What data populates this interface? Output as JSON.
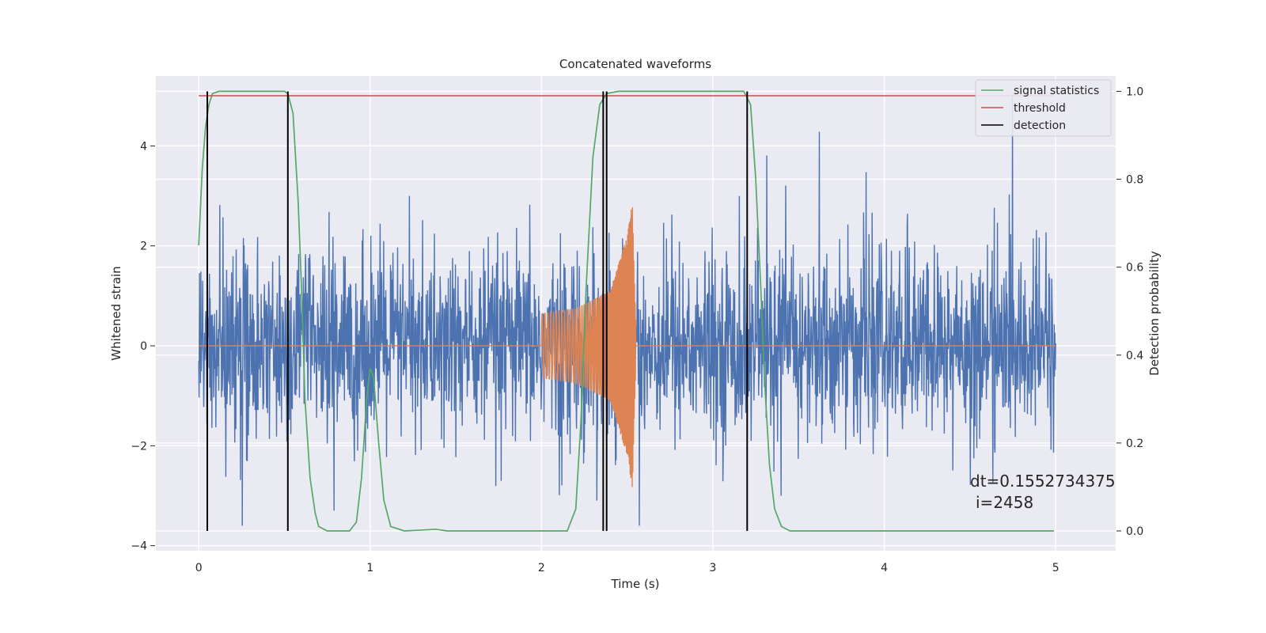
{
  "chart_data": {
    "type": "line",
    "title": "Concatenated waveforms",
    "xlabel": "Time (s)",
    "ylabel": "Whitened strain",
    "y2label": "Detection probability",
    "xlim": [
      -0.25,
      5.35
    ],
    "ylim": [
      -4.1,
      5.4
    ],
    "y2lim": [
      -0.045,
      1.035
    ],
    "xticks": [
      0,
      1,
      2,
      3,
      4,
      5
    ],
    "yticks": [
      -4,
      -2,
      0,
      2,
      4
    ],
    "y2ticks": [
      0.0,
      0.2,
      0.4,
      0.6,
      0.8,
      1.0
    ],
    "xtick_labels": [
      "0",
      "1",
      "2",
      "3",
      "4",
      "5"
    ],
    "ytick_labels": [
      "−4",
      "−2",
      "0",
      "2",
      "4"
    ],
    "y2tick_labels": [
      "0.0",
      "0.2",
      "0.4",
      "0.6",
      "0.8",
      "1.0"
    ],
    "grid": true,
    "legend_position": "top-right",
    "series": [
      {
        "name": "",
        "axis": "left",
        "color": "#4c72b0",
        "description": "noise",
        "x_range": [
          0,
          5
        ],
        "amplitude_range": [
          -3.6,
          5.0
        ]
      },
      {
        "name": "",
        "axis": "left",
        "color": "#dd8452",
        "description": "chirp",
        "x_range": [
          2.0,
          2.55
        ],
        "envelope": {
          "x": [
            2.0,
            2.2,
            2.4,
            2.5,
            2.53,
            2.55
          ],
          "amp": [
            0.65,
            0.75,
            1.1,
            2.2,
            2.9,
            0.5
          ]
        }
      },
      {
        "name": "signal statistics",
        "axis": "right",
        "color": "#55a868",
        "x": [
          0.0,
          0.02,
          0.04,
          0.06,
          0.08,
          0.12,
          0.5,
          0.52,
          0.55,
          0.58,
          0.6,
          0.62,
          0.65,
          0.68,
          0.7,
          0.75,
          0.88,
          0.92,
          0.95,
          0.98,
          1.0,
          1.02,
          1.05,
          1.08,
          1.12,
          1.2,
          1.35,
          1.38,
          1.45,
          2.15,
          2.2,
          2.23,
          2.26,
          2.3,
          2.34,
          2.38,
          2.45,
          3.18,
          3.22,
          3.25,
          3.28,
          3.3,
          3.33,
          3.36,
          3.4,
          3.45,
          4.99
        ],
        "y": [
          0.65,
          0.82,
          0.92,
          0.97,
          0.995,
          1.0,
          1.0,
          0.995,
          0.95,
          0.75,
          0.55,
          0.3,
          0.12,
          0.04,
          0.01,
          0.0,
          0.0,
          0.02,
          0.12,
          0.3,
          0.37,
          0.35,
          0.2,
          0.07,
          0.01,
          0.0,
          0.003,
          0.004,
          0.0,
          0.0,
          0.05,
          0.25,
          0.55,
          0.85,
          0.97,
          0.995,
          1.0,
          1.0,
          0.97,
          0.8,
          0.55,
          0.35,
          0.15,
          0.05,
          0.01,
          0.0,
          0.0
        ]
      },
      {
        "name": "threshold",
        "axis": "right",
        "color": "#c44e52",
        "x": [
          0,
          4.99
        ],
        "y": [
          0.99,
          0.99
        ]
      },
      {
        "name": "detection",
        "axis": "right",
        "color": "#000000",
        "x": [
          0.05,
          0.52,
          2.36,
          2.38,
          3.2
        ],
        "y_range": [
          0.0,
          1.0
        ]
      }
    ],
    "annotations": [
      "dt=0.1552734375",
      "i=2458"
    ]
  }
}
